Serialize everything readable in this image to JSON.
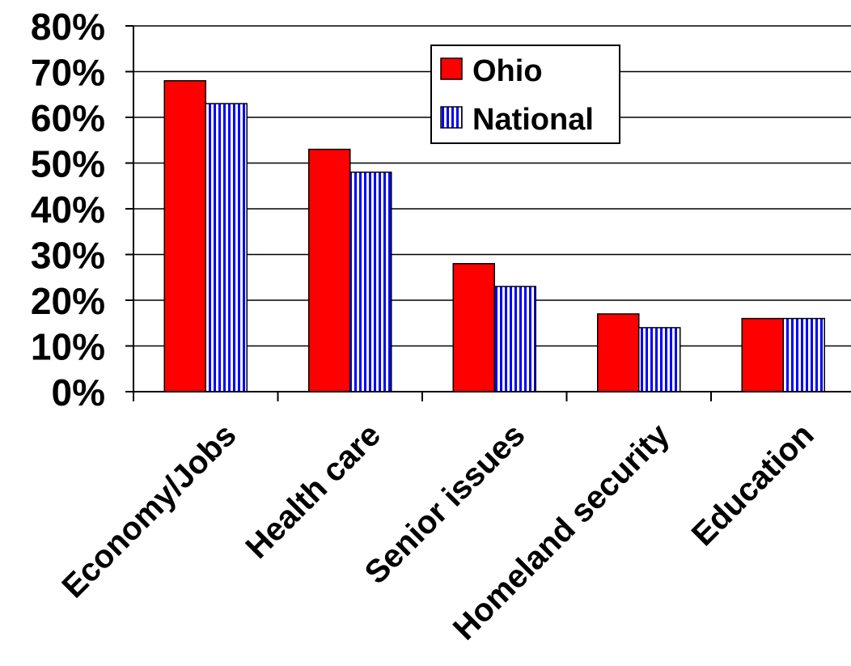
{
  "chart_data": {
    "type": "bar",
    "categories": [
      "Economy/Jobs",
      "Health care",
      "Senior issues",
      "Homeland security",
      "Education"
    ],
    "series": [
      {
        "name": "Ohio",
        "values": [
          68,
          53,
          28,
          17,
          16
        ],
        "color": "#ff0000",
        "pattern": "solid"
      },
      {
        "name": "National",
        "values": [
          63,
          48,
          23,
          14,
          16
        ],
        "color": "#0000ff",
        "pattern": "vertical-stripes"
      }
    ],
    "yticks": [
      "0%",
      "10%",
      "20%",
      "30%",
      "40%",
      "50%",
      "60%",
      "70%",
      "80%"
    ],
    "ylim": [
      0,
      80
    ],
    "grid": true,
    "legend": "top-right"
  }
}
